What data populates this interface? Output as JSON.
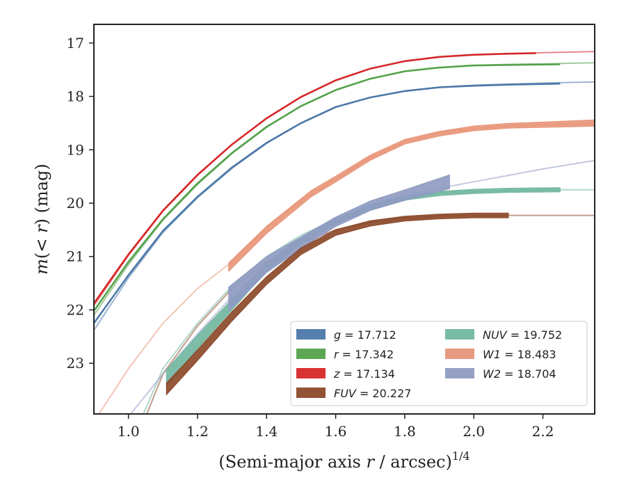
{
  "chart_data": {
    "type": "line",
    "xlabel": "(Semi-major axis r / arcsec)",
    "xlabel_parts": {
      "pre": "(Semi-major axis ",
      "var": "r",
      "post": " / arcsec)",
      "sup": "1/4"
    },
    "ylabel": "m(< r) (mag)",
    "ylabel_parts": {
      "var": "m",
      "mid": "(< ",
      "var2": "r",
      "post": ") (mag)"
    },
    "xlim": [
      0.9,
      2.35
    ],
    "ylim": [
      23.95,
      16.65
    ],
    "y_inverted": true,
    "xticks": [
      1.0,
      1.2,
      1.4,
      1.6,
      1.8,
      2.0,
      2.2
    ],
    "xtick_labels": [
      "1.0",
      "1.2",
      "1.4",
      "1.6",
      "1.8",
      "2.0",
      "2.2"
    ],
    "yticks": [
      17,
      18,
      19,
      20,
      21,
      22,
      23
    ],
    "ytick_labels": [
      "17",
      "18",
      "19",
      "20",
      "21",
      "22",
      "23"
    ],
    "grid": false,
    "legend_position": "lower-right",
    "series": [
      {
        "name": "g = 17.712",
        "sym": "g",
        "value": "17.712",
        "color": "#4c78a8",
        "band": false,
        "model": [
          [
            0.9,
            22.38
          ],
          [
            1.0,
            21.4
          ],
          [
            1.1,
            20.55
          ],
          [
            1.2,
            19.9
          ],
          [
            1.3,
            19.35
          ],
          [
            1.4,
            18.88
          ],
          [
            1.5,
            18.5
          ],
          [
            1.6,
            18.2
          ],
          [
            1.7,
            18.02
          ],
          [
            1.8,
            17.9
          ],
          [
            1.9,
            17.83
          ],
          [
            2.0,
            17.79
          ],
          [
            2.1,
            17.77
          ],
          [
            2.2,
            17.75
          ],
          [
            2.35,
            17.73
          ]
        ],
        "data": [
          [
            0.9,
            22.25
          ],
          [
            1.0,
            21.35
          ],
          [
            1.1,
            20.52
          ],
          [
            1.2,
            19.88
          ],
          [
            1.3,
            19.33
          ],
          [
            1.4,
            18.87
          ],
          [
            1.5,
            18.5
          ],
          [
            1.6,
            18.2
          ],
          [
            1.7,
            18.02
          ],
          [
            1.8,
            17.9
          ],
          [
            1.9,
            17.83
          ],
          [
            2.0,
            17.8
          ],
          [
            2.1,
            17.78
          ],
          [
            2.25,
            17.76
          ]
        ]
      },
      {
        "name": "r = 17.342",
        "sym": "r",
        "value": "17.342",
        "color": "#54a24b",
        "band": false,
        "model": [
          [
            0.9,
            22.1
          ],
          [
            1.0,
            21.15
          ],
          [
            1.1,
            20.32
          ],
          [
            1.2,
            19.65
          ],
          [
            1.3,
            19.07
          ],
          [
            1.4,
            18.58
          ],
          [
            1.5,
            18.18
          ],
          [
            1.6,
            17.88
          ],
          [
            1.7,
            17.67
          ],
          [
            1.8,
            17.53
          ],
          [
            1.9,
            17.46
          ],
          [
            2.0,
            17.42
          ],
          [
            2.1,
            17.4
          ],
          [
            2.2,
            17.39
          ],
          [
            2.35,
            17.37
          ]
        ],
        "data": [
          [
            0.9,
            22.02
          ],
          [
            1.0,
            21.1
          ],
          [
            1.1,
            20.3
          ],
          [
            1.2,
            19.63
          ],
          [
            1.3,
            19.06
          ],
          [
            1.4,
            18.57
          ],
          [
            1.5,
            18.18
          ],
          [
            1.6,
            17.88
          ],
          [
            1.7,
            17.67
          ],
          [
            1.8,
            17.53
          ],
          [
            1.9,
            17.46
          ],
          [
            2.0,
            17.42
          ],
          [
            2.1,
            17.41
          ],
          [
            2.25,
            17.4
          ]
        ]
      },
      {
        "name": "z = 17.134",
        "sym": "z",
        "value": "17.134",
        "color": "#d62728",
        "band": false,
        "model": [
          [
            0.9,
            21.92
          ],
          [
            1.0,
            20.98
          ],
          [
            1.1,
            20.15
          ],
          [
            1.2,
            19.48
          ],
          [
            1.3,
            18.9
          ],
          [
            1.4,
            18.41
          ],
          [
            1.5,
            18.01
          ],
          [
            1.6,
            17.7
          ],
          [
            1.7,
            17.48
          ],
          [
            1.8,
            17.34
          ],
          [
            1.9,
            17.26
          ],
          [
            2.0,
            17.22
          ],
          [
            2.1,
            17.2
          ],
          [
            2.2,
            17.18
          ],
          [
            2.35,
            17.16
          ]
        ],
        "data": [
          [
            0.9,
            21.88
          ],
          [
            1.0,
            20.96
          ],
          [
            1.1,
            20.14
          ],
          [
            1.2,
            19.47
          ],
          [
            1.3,
            18.9
          ],
          [
            1.4,
            18.41
          ],
          [
            1.5,
            18.01
          ],
          [
            1.6,
            17.7
          ],
          [
            1.7,
            17.48
          ],
          [
            1.8,
            17.34
          ],
          [
            1.9,
            17.26
          ],
          [
            2.0,
            17.22
          ],
          [
            2.1,
            17.2
          ],
          [
            2.18,
            17.19
          ]
        ]
      },
      {
        "name": "FUV = 20.227",
        "sym": "FUV",
        "value": "20.227",
        "color": "#8c4a2a",
        "band": true,
        "model": [
          [
            1.0,
            24.8
          ],
          [
            1.1,
            23.2
          ],
          [
            1.2,
            22.3
          ],
          [
            1.3,
            21.6
          ],
          [
            1.4,
            21.1
          ],
          [
            1.5,
            20.75
          ],
          [
            1.6,
            20.5
          ],
          [
            1.7,
            20.36
          ],
          [
            1.8,
            20.28
          ],
          [
            1.9,
            20.24
          ],
          [
            2.0,
            20.23
          ],
          [
            2.1,
            20.23
          ],
          [
            2.2,
            20.23
          ],
          [
            2.35,
            20.23
          ]
        ],
        "data": [
          [
            1.11,
            23.48
          ],
          [
            1.2,
            22.85
          ],
          [
            1.3,
            22.12
          ],
          [
            1.4,
            21.45
          ],
          [
            1.5,
            20.9
          ],
          [
            1.6,
            20.55
          ],
          [
            1.7,
            20.38
          ],
          [
            1.8,
            20.29
          ],
          [
            1.9,
            20.25
          ],
          [
            2.0,
            20.23
          ],
          [
            2.1,
            20.23
          ]
        ],
        "width": [
          0.22,
          0.2,
          0.18,
          0.15,
          0.13,
          0.11,
          0.1,
          0.09,
          0.09,
          0.09,
          0.09
        ]
      },
      {
        "name": "NUV = 19.752",
        "sym": "NUV",
        "value": "19.752",
        "color": "#72b7a1",
        "band": true,
        "model": [
          [
            1.0,
            24.6
          ],
          [
            1.1,
            23.1
          ],
          [
            1.2,
            22.25
          ],
          [
            1.3,
            21.55
          ],
          [
            1.4,
            21.0
          ],
          [
            1.5,
            20.6
          ],
          [
            1.6,
            20.3
          ],
          [
            1.7,
            20.05
          ],
          [
            1.8,
            19.9
          ],
          [
            1.9,
            19.81
          ],
          [
            2.0,
            19.78
          ],
          [
            2.1,
            19.76
          ],
          [
            2.2,
            19.75
          ],
          [
            2.35,
            19.75
          ]
        ],
        "data": [
          [
            1.11,
            23.28
          ],
          [
            1.2,
            22.6
          ],
          [
            1.3,
            21.9
          ],
          [
            1.4,
            21.2
          ],
          [
            1.5,
            20.7
          ],
          [
            1.6,
            20.35
          ],
          [
            1.7,
            20.08
          ],
          [
            1.8,
            19.9
          ],
          [
            1.9,
            19.82
          ],
          [
            2.0,
            19.78
          ],
          [
            2.1,
            19.76
          ],
          [
            2.25,
            19.75
          ]
        ],
        "width": [
          0.3,
          0.25,
          0.2,
          0.15,
          0.12,
          0.1,
          0.09,
          0.09,
          0.08,
          0.08,
          0.08,
          0.08
        ]
      },
      {
        "name": "W1 = 18.483",
        "sym": "W1",
        "value": "18.483",
        "color": "#e8967a",
        "band": true,
        "model": [
          [
            0.9,
            24.1
          ],
          [
            1.0,
            23.1
          ],
          [
            1.1,
            22.25
          ],
          [
            1.2,
            21.6
          ],
          [
            1.3,
            21.1
          ],
          [
            1.4,
            20.45
          ],
          [
            1.5,
            19.95
          ],
          [
            1.6,
            19.55
          ],
          [
            1.7,
            19.15
          ],
          [
            1.8,
            18.85
          ],
          [
            1.9,
            18.68
          ],
          [
            2.0,
            18.6
          ],
          [
            2.1,
            18.55
          ],
          [
            2.2,
            18.53
          ],
          [
            2.35,
            18.5
          ]
        ],
        "data": [
          [
            1.29,
            21.2
          ],
          [
            1.4,
            20.5
          ],
          [
            1.53,
            19.82
          ],
          [
            1.6,
            19.55
          ],
          [
            1.7,
            19.15
          ],
          [
            1.8,
            18.85
          ],
          [
            1.9,
            18.7
          ],
          [
            2.0,
            18.6
          ],
          [
            2.1,
            18.55
          ],
          [
            2.2,
            18.53
          ],
          [
            2.35,
            18.5
          ]
        ],
        "width": [
          0.16,
          0.14,
          0.12,
          0.11,
          0.1,
          0.09,
          0.09,
          0.09,
          0.09,
          0.1,
          0.12
        ]
      },
      {
        "name": "W2 = 18.704",
        "sym": "W2",
        "value": "18.704",
        "color": "#8f9bc2",
        "band": true,
        "model": [
          [
            0.9,
            25.3
          ],
          [
            1.0,
            24.0
          ],
          [
            1.1,
            23.2
          ],
          [
            1.2,
            22.45
          ],
          [
            1.3,
            21.75
          ],
          [
            1.4,
            21.15
          ],
          [
            1.5,
            20.7
          ],
          [
            1.6,
            20.35
          ],
          [
            1.7,
            20.1
          ],
          [
            1.8,
            19.88
          ],
          [
            1.9,
            19.72
          ],
          [
            2.0,
            19.6
          ],
          [
            2.1,
            19.48
          ],
          [
            2.2,
            19.36
          ],
          [
            2.35,
            19.2
          ]
        ],
        "data": [
          [
            1.29,
            21.8
          ],
          [
            1.4,
            21.15
          ],
          [
            1.53,
            20.62
          ],
          [
            1.6,
            20.35
          ],
          [
            1.7,
            20.05
          ],
          [
            1.8,
            19.85
          ],
          [
            1.93,
            19.6
          ]
        ],
        "width": [
          0.45,
          0.3,
          0.2,
          0.18,
          0.18,
          0.2,
          0.26
        ]
      }
    ]
  }
}
